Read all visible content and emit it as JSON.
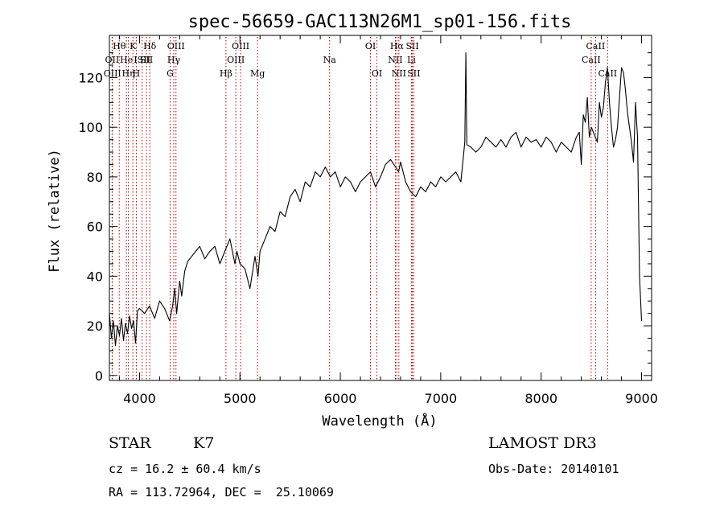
{
  "chart_data": {
    "type": "line",
    "title": "spec-56659-GAC113N26M1_sp01-156.fits",
    "xlabel": "Wavelength (Å)",
    "ylabel": "Flux (relative)",
    "xlim": [
      3700,
      9100
    ],
    "ylim": [
      -2,
      137
    ],
    "xticks": [
      4000,
      5000,
      6000,
      7000,
      8000,
      9000
    ],
    "yticks": [
      0,
      20,
      40,
      60,
      80,
      100,
      120
    ],
    "grid": false,
    "series": [
      {
        "x": [
          3700,
          3720,
          3740,
          3760,
          3780,
          3800,
          3820,
          3840,
          3860,
          3880,
          3900,
          3920,
          3940,
          3960,
          3980,
          4000,
          4050,
          4100,
          4150,
          4200,
          4250,
          4280,
          4300,
          4330,
          4350,
          4370,
          4400,
          4420,
          4450,
          4480,
          4520,
          4560,
          4600,
          4650,
          4700,
          4750,
          4800,
          4850,
          4900,
          4950,
          4970,
          5000,
          5050,
          5100,
          5150,
          5180,
          5200,
          5250,
          5300,
          5350,
          5400,
          5450,
          5500,
          5550,
          5600,
          5650,
          5700,
          5750,
          5800,
          5850,
          5900,
          5950,
          6000,
          6050,
          6100,
          6150,
          6200,
          6250,
          6300,
          6350,
          6400,
          6450,
          6500,
          6550,
          6580,
          6600,
          6650,
          6700,
          6750,
          6800,
          6850,
          6900,
          6950,
          7000,
          7050,
          7100,
          7150,
          7200,
          7240,
          7250,
          7260,
          7300,
          7350,
          7400,
          7450,
          7500,
          7550,
          7600,
          7650,
          7700,
          7750,
          7800,
          7850,
          7900,
          7950,
          8000,
          8050,
          8100,
          8150,
          8200,
          8250,
          8300,
          8350,
          8380,
          8400,
          8420,
          8440,
          8460,
          8480,
          8500,
          8520,
          8540,
          8560,
          8580,
          8600,
          8620,
          8640,
          8660,
          8680,
          8700,
          8720,
          8740,
          8760,
          8780,
          8800,
          8820,
          8840,
          8860,
          8880,
          8900,
          8920,
          8940,
          8960,
          8980,
          9000
        ],
        "values": [
          25,
          15,
          22,
          12,
          20,
          16,
          23,
          14,
          21,
          17,
          24,
          19,
          22,
          13,
          26,
          27,
          25,
          28,
          23,
          30,
          27,
          24,
          22,
          28,
          35,
          25,
          38,
          32,
          42,
          46,
          48,
          50,
          52,
          47,
          50,
          52,
          45,
          50,
          55,
          45,
          50,
          45,
          43,
          35,
          48,
          40,
          50,
          55,
          60,
          58,
          66,
          64,
          72,
          75,
          70,
          78,
          76,
          82,
          80,
          84,
          80,
          82,
          76,
          80,
          78,
          74,
          78,
          80,
          82,
          76,
          80,
          85,
          87,
          84,
          82,
          86,
          78,
          74,
          72,
          76,
          74,
          78,
          76,
          80,
          78,
          80,
          82,
          78,
          94,
          130,
          93,
          92,
          90,
          92,
          96,
          94,
          92,
          95,
          92,
          96,
          98,
          92,
          96,
          94,
          95,
          92,
          96,
          94,
          90,
          94,
          92,
          90,
          96,
          98,
          85,
          105,
          102,
          112,
          96,
          100,
          98,
          96,
          94,
          110,
          104,
          108,
          118,
          124,
          110,
          100,
          92,
          95,
          100,
          112,
          124,
          122,
          115,
          106,
          100,
          94,
          86,
          110,
          96,
          40,
          22
        ]
      }
    ],
    "line_markers": [
      {
        "wl": 3798,
        "labels": [
          "H&#952;"
        ],
        "row": 0
      },
      {
        "wl": 3727,
        "labels": [
          "OII"
        ],
        "row": 1
      },
      {
        "wl": 3730,
        "labels": [
          "OIII"
        ],
        "row": 2
      },
      {
        "wl": 3869,
        "labels": [
          "He"
        ],
        "row": 1
      },
      {
        "wl": 3889,
        "labels": [
          "H&#951;"
        ],
        "row": 2
      },
      {
        "wl": 3934,
        "labels": [
          "K"
        ],
        "row": 0
      },
      {
        "wl": 3968,
        "labels": [
          "H"
        ],
        "row": 2
      },
      {
        "wl": 4026,
        "labels": [
          "ISII"
        ],
        "row": 1
      },
      {
        "wl": 4102,
        "labels": [
          "H&#948;"
        ],
        "row": 0
      },
      {
        "wl": 4069,
        "labels": [
          "SII"
        ],
        "row": 1
      },
      {
        "wl": 4305,
        "labels": [
          "G"
        ],
        "row": 2
      },
      {
        "wl": 4341,
        "labels": [
          "H&#947;"
        ],
        "row": 1
      },
      {
        "wl": 4363,
        "labels": [
          "OIII"
        ],
        "row": 0
      },
      {
        "wl": 4861,
        "labels": [
          "H&#946;"
        ],
        "row": 2
      },
      {
        "wl": 4959,
        "labels": [
          "OIII"
        ],
        "row": 1
      },
      {
        "wl": 5007,
        "labels": [
          "OIII"
        ],
        "row": 0
      },
      {
        "wl": 5175,
        "labels": [
          "Mg"
        ],
        "row": 2
      },
      {
        "wl": 5893,
        "labels": [
          "Na"
        ],
        "row": 1
      },
      {
        "wl": 6300,
        "labels": [
          "OI"
        ],
        "row": 0
      },
      {
        "wl": 6364,
        "labels": [
          "OI"
        ],
        "row": 2
      },
      {
        "wl": 6548,
        "labels": [
          "NII"
        ],
        "row": 1
      },
      {
        "wl": 6563,
        "labels": [
          "H&#945;"
        ],
        "row": 0
      },
      {
        "wl": 6583,
        "labels": [
          "NII"
        ],
        "row": 2
      },
      {
        "wl": 6708,
        "labels": [
          "Li"
        ],
        "row": 1
      },
      {
        "wl": 6717,
        "labels": [
          "SII"
        ],
        "row": 0
      },
      {
        "wl": 6731,
        "labels": [
          "SII"
        ],
        "row": 2
      },
      {
        "wl": 8498,
        "labels": [
          "CaII"
        ],
        "row": 1
      },
      {
        "wl": 8542,
        "labels": [
          "CaII"
        ],
        "row": 0
      },
      {
        "wl": 8662,
        "labels": [
          "CaII"
        ],
        "row": 2
      }
    ]
  },
  "info": {
    "class": "STAR",
    "subclass": "K7",
    "survey": "LAMOST DR3",
    "cz": "cz = 16.2 ± 60.4 km/s",
    "obsdate": "Obs-Date: 20140101",
    "radec": "RA = 113.72964, DEC =  25.10069"
  },
  "colors": {
    "line_marker": "#b00000",
    "spectrum": "#000000"
  }
}
